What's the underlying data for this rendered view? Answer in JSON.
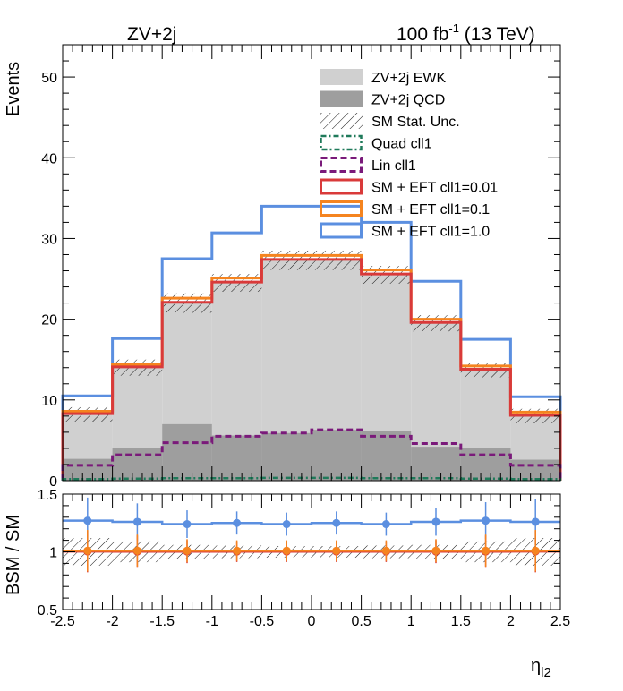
{
  "chart_data": [
    {
      "type": "bar",
      "title_left": "ZV+2j",
      "title_right_main": "100 fb",
      "title_right_sup": "-1",
      "title_right_tail": " (13 TeV)",
      "ylabel": "Events",
      "xlabel": "",
      "xlim": [
        -2.5,
        2.5
      ],
      "ylim": [
        0,
        54
      ],
      "x_ticks": [
        "-2.5",
        "-2",
        "-1.5",
        "-1",
        "-0.5",
        "0",
        "0.5",
        "1",
        "1.5",
        "2",
        "2.5"
      ],
      "y_ticks": [
        "0",
        "10",
        "20",
        "30",
        "40",
        "50"
      ],
      "bin_edges": [
        -2.5,
        -2.0,
        -1.5,
        -1.0,
        -0.5,
        0.0,
        0.5,
        1.0,
        1.5,
        2.0,
        2.5
      ],
      "legend_position": "top-right",
      "series": [
        {
          "name": "ZV+2j EWK",
          "style": "fill",
          "color": "#d0d0d0",
          "values": [
            8.2,
            14.0,
            22.0,
            24.5,
            27.3,
            27.3,
            25.5,
            19.5,
            13.7,
            8.0
          ]
        },
        {
          "name": "ZV+2j QCD",
          "style": "fill",
          "color": "#9e9e9e",
          "values": [
            2.7,
            4.1,
            7.0,
            5.6,
            5.9,
            6.3,
            6.2,
            4.2,
            4.0,
            2.6
          ]
        },
        {
          "name": "SM Stat. Unc.",
          "style": "hatch",
          "color": "#000000",
          "values": [
            8.2,
            14.0,
            22.0,
            24.5,
            27.3,
            27.3,
            25.5,
            19.5,
            13.7,
            8.0
          ],
          "errors": [
            0.9,
            1.0,
            1.2,
            1.1,
            1.2,
            1.2,
            1.1,
            1.0,
            0.9,
            0.9
          ]
        },
        {
          "name": "Quad cll1",
          "style": "dashdot",
          "color": "#1f7a5a",
          "values": [
            0.2,
            0.25,
            0.3,
            0.3,
            0.35,
            0.35,
            0.3,
            0.3,
            0.25,
            0.2
          ]
        },
        {
          "name": "Lin cll1",
          "style": "dash",
          "color": "#7a1a7a",
          "values": [
            1.9,
            3.2,
            4.7,
            5.5,
            5.9,
            6.3,
            5.5,
            4.6,
            3.2,
            1.9
          ]
        },
        {
          "name": "SM + EFT cll1=0.01",
          "style": "line",
          "color": "#d93a3a",
          "values": [
            8.3,
            14.1,
            22.1,
            24.6,
            27.4,
            27.4,
            25.6,
            19.6,
            13.8,
            8.1
          ]
        },
        {
          "name": "SM + EFT cll1=0.1",
          "style": "line",
          "color": "#f5841f",
          "values": [
            8.6,
            14.4,
            22.6,
            25.1,
            27.9,
            27.9,
            26.1,
            20.0,
            14.2,
            8.5
          ]
        },
        {
          "name": "SM + EFT cll1=1.0",
          "style": "line",
          "color": "#5b8fe0",
          "values": [
            10.5,
            17.6,
            27.5,
            30.7,
            34.0,
            34.0,
            32.0,
            24.7,
            17.5,
            10.4
          ]
        }
      ]
    },
    {
      "type": "scatter",
      "ylabel": "BSM / SM",
      "xlabel_main": "η",
      "xlabel_sub": "l2",
      "xlim": [
        -2.5,
        2.5
      ],
      "ylim": [
        0.5,
        1.5
      ],
      "y_ticks": [
        "0.5",
        "1",
        "1.5"
      ],
      "x_centers": [
        -2.25,
        -1.75,
        -1.25,
        -0.75,
        -0.25,
        0.25,
        0.75,
        1.25,
        1.75,
        2.25
      ],
      "band_halfwidth": [
        0.12,
        0.09,
        0.06,
        0.055,
        0.05,
        0.05,
        0.055,
        0.06,
        0.09,
        0.12
      ],
      "series": [
        {
          "name": "SM + EFT cll1=0.01",
          "color": "#d93a3a",
          "values": [
            1.003,
            1.002,
            1.002,
            1.002,
            1.002,
            1.002,
            1.002,
            1.002,
            1.002,
            1.003
          ],
          "errors": [
            0.18,
            0.14,
            0.1,
            0.09,
            0.09,
            0.09,
            0.09,
            0.1,
            0.14,
            0.18
          ]
        },
        {
          "name": "SM + EFT cll1=0.1",
          "color": "#f5841f",
          "values": [
            1.01,
            1.01,
            1.01,
            1.01,
            1.01,
            1.01,
            1.01,
            1.01,
            1.01,
            1.01
          ],
          "errors": [
            0.18,
            0.14,
            0.1,
            0.09,
            0.09,
            0.09,
            0.09,
            0.1,
            0.14,
            0.18
          ]
        },
        {
          "name": "SM + EFT cll1=1.0",
          "color": "#5b8fe0",
          "values": [
            1.27,
            1.26,
            1.24,
            1.25,
            1.24,
            1.25,
            1.24,
            1.26,
            1.27,
            1.26
          ],
          "errors": [
            0.2,
            0.16,
            0.12,
            0.1,
            0.1,
            0.1,
            0.1,
            0.12,
            0.16,
            0.2
          ]
        }
      ]
    }
  ]
}
